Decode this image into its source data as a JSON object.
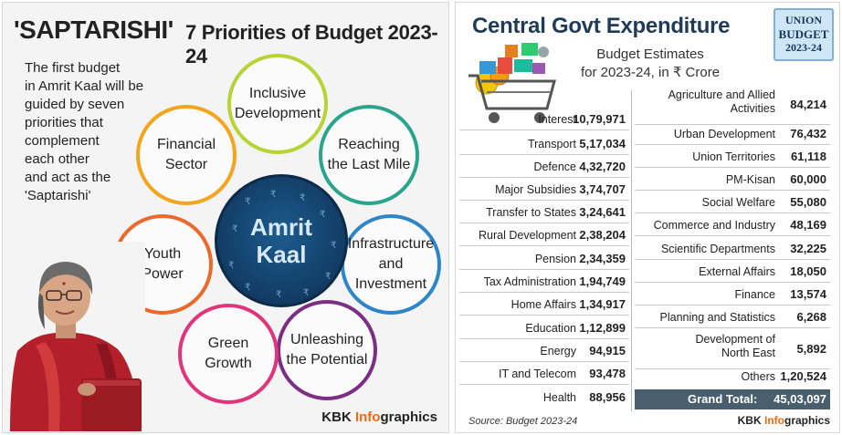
{
  "left": {
    "title": "'SAPTARISHI'",
    "subtitle": "7 Priorities of Budget 2023-24",
    "intro_lines": [
      "The first budget",
      "in Amrit Kaal will be",
      "guided by seven",
      "priorities that",
      "complement",
      "each other",
      "and act as the",
      "'Saptarishi'"
    ],
    "center": {
      "line1": "Amrit",
      "line2": "Kaal"
    },
    "priorities": [
      {
        "line1": "Inclusive",
        "line2": "Development",
        "color": "#b7d335"
      },
      {
        "line1": "Reaching",
        "line2": "the Last Mile",
        "color": "#2aa58c"
      },
      {
        "line1": "Infrastructure",
        "line2": "and",
        "line3": "Investment",
        "color": "#2e86c8"
      },
      {
        "line1": "Unleashing",
        "line2": "the Potential",
        "color": "#7b2e84"
      },
      {
        "line1": "Green",
        "line2": "Growth",
        "color": "#e0357a"
      },
      {
        "line1": "Youth",
        "line2": "Power",
        "color": "#ea6a2b"
      },
      {
        "line1": "Financial",
        "line2": "Sector",
        "color": "#f3a51d"
      }
    ],
    "credit_prefix": "KBK ",
    "credit_info": "Info",
    "credit_suffix": "graphics"
  },
  "right": {
    "title": "Central Govt Expenditure",
    "subtitle1": "Budget Estimates",
    "subtitle2": "for 2023-24, in ₹ Crore",
    "badge": {
      "line1": "UNION",
      "line2": "BUDGET",
      "line3": "2023-24"
    },
    "col1": [
      {
        "label": "Interest",
        "value": "10,79,971"
      },
      {
        "label": "Transport",
        "value": "5,17,034"
      },
      {
        "label": "Defence",
        "value": "4,32,720"
      },
      {
        "label": "Major Subsidies",
        "value": "3,74,707"
      },
      {
        "label": "Transfer to States",
        "value": "3,24,641"
      },
      {
        "label": "Rural Development",
        "value": "2,38,204"
      },
      {
        "label": "Pension",
        "value": "2,34,359"
      },
      {
        "label": "Tax Administration",
        "value": "1,94,749"
      },
      {
        "label": "Home Affairs",
        "value": "1,34,917"
      },
      {
        "label": "Education",
        "value": "1,12,899"
      },
      {
        "label": "Energy",
        "value": "94,915"
      },
      {
        "label": "IT and Telecom",
        "value": "93,478"
      },
      {
        "label": "Health",
        "value": "88,956"
      }
    ],
    "col2": [
      {
        "label": "Agriculture and Allied Activities",
        "value": "84,214"
      },
      {
        "label": "Urban Development",
        "value": "76,432"
      },
      {
        "label": "Union Territories",
        "value": "61,118"
      },
      {
        "label": "PM-Kisan",
        "value": "60,000"
      },
      {
        "label": "Social Welfare",
        "value": "55,080"
      },
      {
        "label": "Commerce and Industry",
        "value": "48,169"
      },
      {
        "label": "Scientific Departments",
        "value": "32,225"
      },
      {
        "label": "External Affairs",
        "value": "18,050"
      },
      {
        "label": "Finance",
        "value": "13,574"
      },
      {
        "label": "Planning and Statistics",
        "value": "6,268"
      },
      {
        "label": "Development of North East",
        "value": "5,892"
      },
      {
        "label": "Others",
        "value": "1,20,524"
      }
    ],
    "grand_total_label": "Grand Total:",
    "grand_total_value": "45,03,097",
    "source": "Source: Budget 2023-24",
    "credit_prefix": "KBK ",
    "credit_info": "Info",
    "credit_suffix": "graphics"
  }
}
